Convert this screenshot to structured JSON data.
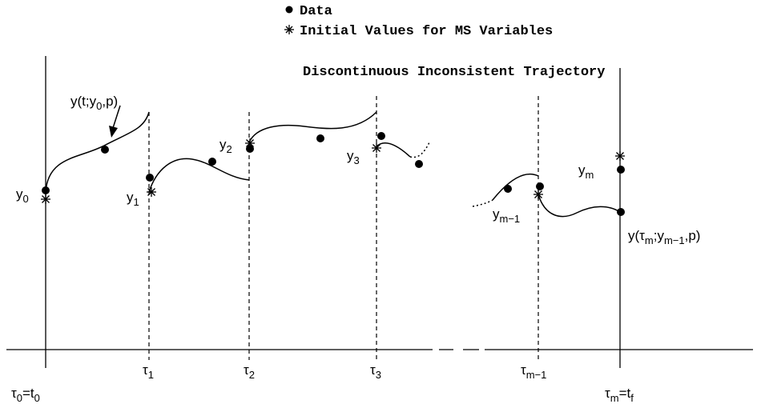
{
  "legend": [
    {
      "label": "Data"
    },
    {
      "label": "Initial Values for MS Variables"
    }
  ],
  "title": "Discontinuous Inconsistent Trajectory",
  "curve_label": [
    {
      "t": "y(t"
    },
    {
      "t": ";y"
    },
    {
      "sub": "0"
    },
    {
      "t": ",p)"
    }
  ],
  "node_labels": [
    [
      {
        "t": "y"
      },
      {
        "sub": "0"
      }
    ],
    [
      {
        "t": "y"
      },
      {
        "sub": "1"
      }
    ],
    [
      {
        "t": "y"
      },
      {
        "sub": "2"
      }
    ],
    [
      {
        "t": "y"
      },
      {
        "sub": "3"
      }
    ],
    [
      {
        "t": "y"
      },
      {
        "sub": "m"
      }
    ],
    [
      {
        "t": "y"
      },
      {
        "sub": "m−1"
      }
    ],
    [
      {
        "t": "y(τ"
      },
      {
        "sub": "m"
      },
      {
        "t": ";y"
      },
      {
        "sub": "m−1"
      },
      {
        "t": ",p)"
      }
    ]
  ],
  "tick_labels": [
    [
      {
        "t": "τ"
      },
      {
        "sub": "0"
      },
      {
        "t": "=t"
      },
      {
        "sub": "0"
      }
    ],
    [
      {
        "t": "τ"
      },
      {
        "sub": "1"
      }
    ],
    [
      {
        "t": "τ"
      },
      {
        "sub": "2"
      }
    ],
    [
      {
        "t": "τ"
      },
      {
        "sub": "3"
      }
    ],
    [
      {
        "t": "τ"
      },
      {
        "sub": "m−1"
      }
    ],
    [
      {
        "t": "τ"
      },
      {
        "sub": "m"
      },
      {
        "t": "=t"
      },
      {
        "sub": "f"
      }
    ]
  ]
}
